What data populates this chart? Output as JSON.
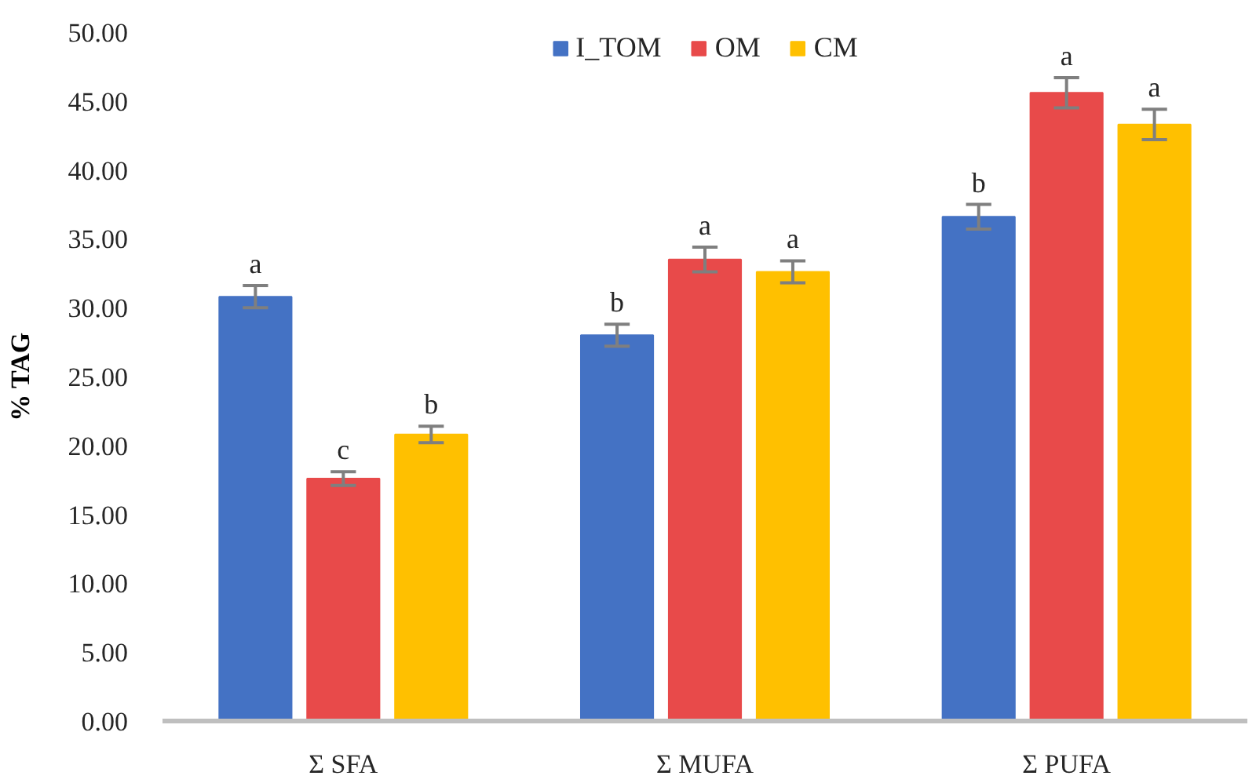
{
  "chart_data": {
    "type": "bar",
    "ylabel": "% TAG",
    "categories": [
      "Σ SFA",
      "Σ MUFA",
      "Σ PUFA"
    ],
    "series": [
      {
        "name": "I_TOM",
        "color": "#4472c4",
        "values": [
          30.8,
          28.0,
          36.6
        ],
        "errors": [
          0.8,
          0.8,
          0.9
        ],
        "value_labels": [
          "a",
          "b",
          "b"
        ]
      },
      {
        "name": "OM",
        "color": "#e84a4a",
        "values": [
          17.6,
          33.5,
          45.6
        ],
        "errors": [
          0.5,
          0.9,
          1.1
        ],
        "value_labels": [
          "c",
          "a",
          "a"
        ]
      },
      {
        "name": "CM",
        "color": "#ffc000",
        "values": [
          20.8,
          32.6,
          43.3
        ],
        "errors": [
          0.6,
          0.8,
          1.1
        ],
        "value_labels": [
          "b",
          "a",
          "a"
        ]
      }
    ],
    "ylim": [
      0,
      50
    ],
    "yticks": [
      {
        "value": 0,
        "label": "0.00"
      },
      {
        "value": 5,
        "label": "5.00"
      },
      {
        "value": 10,
        "label": "10.00"
      },
      {
        "value": 15,
        "label": "15.00"
      },
      {
        "value": 20,
        "label": "20.00"
      },
      {
        "value": 25,
        "label": "25.00"
      },
      {
        "value": 30,
        "label": "30.00"
      },
      {
        "value": 35,
        "label": "35.00"
      },
      {
        "value": 40,
        "label": "40.00"
      },
      {
        "value": 45,
        "label": "45.00"
      },
      {
        "value": 50,
        "label": "50.00"
      }
    ],
    "legend": "top",
    "grid": false
  }
}
